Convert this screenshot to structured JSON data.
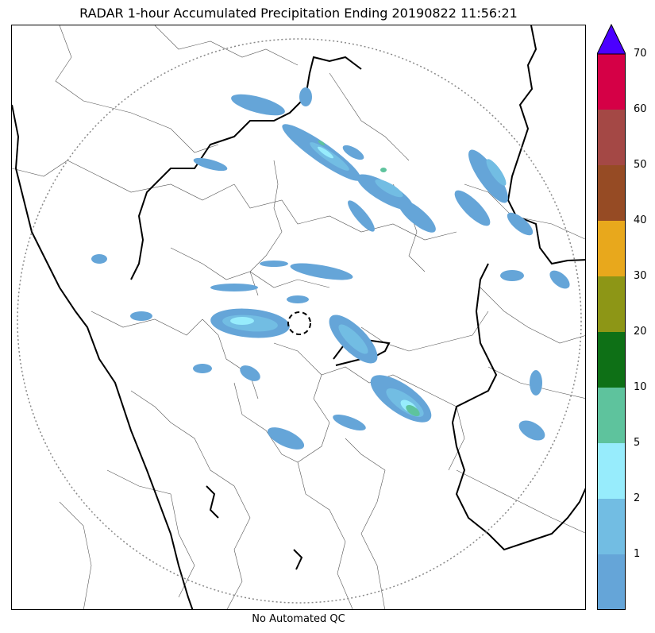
{
  "title": "RADAR 1-hour Accumulated Precipitation Ending 20190822 11:56:21",
  "footer_text": "No Automated QC",
  "colorbar": {
    "extend_color": "#4b00ff",
    "levels": [
      {
        "label": "",
        "color": "#65a5d8"
      },
      {
        "label": "1",
        "color": "#72bde3"
      },
      {
        "label": "2",
        "color": "#97ecfc"
      },
      {
        "label": "5",
        "color": "#5ec39d"
      },
      {
        "label": "10",
        "color": "#0e7016"
      },
      {
        "label": "20",
        "color": "#8d9616"
      },
      {
        "label": "30",
        "color": "#e8a81c"
      },
      {
        "label": "40",
        "color": "#964b24"
      },
      {
        "label": "50",
        "color": "#a44845"
      },
      {
        "label": "60",
        "color": "#d50046"
      }
    ],
    "top_label": "70"
  },
  "map": {
    "range_ring": "dotted",
    "radar_site_marker": "dashed-circle",
    "precipitation_colors": {
      "light": "#65a5d8",
      "moderate": "#72bde3",
      "heavy": "#97ecfc",
      "heavier": "#5ec39d"
    }
  }
}
